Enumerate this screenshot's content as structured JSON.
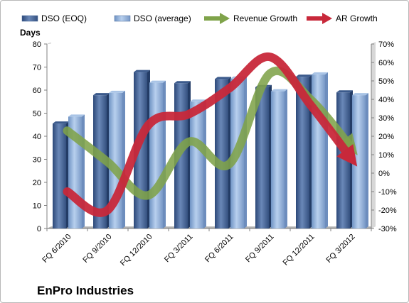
{
  "chart_data": {
    "type": "bar",
    "title": "EnPro Industries",
    "y_left_label": "Days",
    "y_left_range": [
      0,
      80
    ],
    "y_left_ticks": [
      "0",
      "10",
      "20",
      "30",
      "40",
      "50",
      "60",
      "70",
      "80"
    ],
    "y_right_range": [
      -30,
      70
    ],
    "y_right_ticks": [
      "-30%",
      "-20%",
      "-10%",
      "0%",
      "10%",
      "20%",
      "30%",
      "40%",
      "50%",
      "60%",
      "70%"
    ],
    "categories": [
      "FQ 6/2010",
      "FQ 9/2010",
      "FQ 12/2010",
      "FQ 3/2011",
      "FQ 6/2011",
      "FQ 9/2011",
      "FQ 12/2011",
      "FQ 3/2012"
    ],
    "bar_series": [
      {
        "name": "DSO (EOQ)",
        "values": [
          45.5,
          57.8,
          67.8,
          63,
          64.8,
          61.3,
          65.8,
          59
        ],
        "color": "#4f6d9f"
      },
      {
        "name": "DSO (average)",
        "values": [
          48.5,
          58.8,
          63.2,
          55,
          65,
          59.5,
          66.8,
          57.8
        ],
        "color": "#93b4dc"
      }
    ],
    "line_series": [
      {
        "name": "Revenue Growth",
        "axis": "right",
        "values": [
          23,
          6,
          -12,
          17,
          5,
          54,
          40,
          14
        ],
        "color": "#7fa34a"
      },
      {
        "name": "AR Growth",
        "axis": "right",
        "values": [
          -10,
          -20,
          26,
          32,
          46,
          63,
          37,
          8
        ],
        "color": "#c8283a"
      }
    ],
    "legend_position": "top",
    "grid": false
  }
}
